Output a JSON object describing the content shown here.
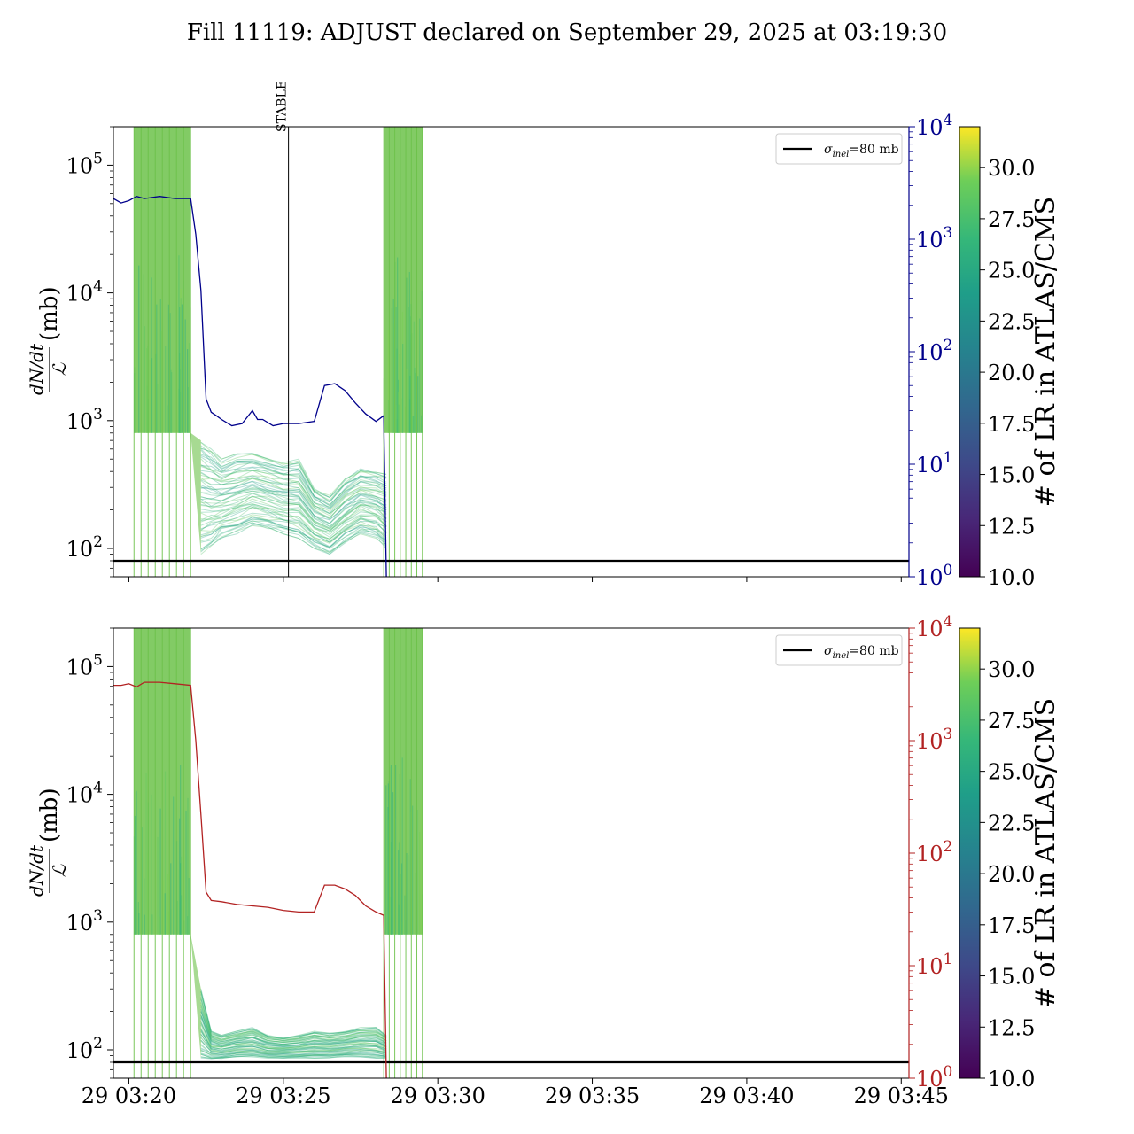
{
  "title": "Fill 11119: ADJUST declared on September 29, 2025 at 03:19:30",
  "colors": {
    "top_series": "#00008b",
    "bottom_series": "#b22222",
    "bundle_green": "#6cc24a",
    "bundle_teal": "#21918c",
    "sigma_line": "#000000"
  },
  "colormap": "viridis",
  "x_axis": {
    "type": "time",
    "range": [
      "03:19:30",
      "03:45:15"
    ],
    "tick_labels": [
      "29 03:20",
      "29 03:25",
      "29 03:30",
      "29 03:35",
      "29 03:40",
      "29 03:45"
    ],
    "tick_times": [
      "03:20",
      "03:25",
      "03:30",
      "03:35",
      "03:40",
      "03:45"
    ]
  },
  "y_left": {
    "scale": "log",
    "range": [
      60,
      200000
    ],
    "label_num": "dN/dt",
    "label_den": "ℒ",
    "label_unit": "(mb)",
    "ticks": [
      {
        "base": "10",
        "exp": "2",
        "v": 100
      },
      {
        "base": "10",
        "exp": "3",
        "v": 1000
      },
      {
        "base": "10",
        "exp": "4",
        "v": 10000
      },
      {
        "base": "10",
        "exp": "5",
        "v": 100000
      }
    ]
  },
  "y_right": {
    "scale": "log",
    "range": [
      1,
      10000
    ],
    "ticks": [
      {
        "base": "10",
        "exp": "0",
        "v": 1
      },
      {
        "base": "10",
        "exp": "1",
        "v": 10
      },
      {
        "base": "10",
        "exp": "2",
        "v": 100
      },
      {
        "base": "10",
        "exp": "3",
        "v": 1000
      },
      {
        "base": "10",
        "exp": "4",
        "v": 10000
      }
    ]
  },
  "colorbar": {
    "label": "# of LR in ATLAS/CMS",
    "range": [
      10.0,
      32.0
    ],
    "ticks": [
      "10.0",
      "12.5",
      "15.0",
      "17.5",
      "20.0",
      "22.5",
      "25.0",
      "27.5",
      "30.0"
    ]
  },
  "legend": {
    "label_main": "σ",
    "label_sub": "inel",
    "label_rest": "=80 mb"
  },
  "stable_marker": {
    "label": "STABLE",
    "time": "03:25:10"
  },
  "chart_data": [
    {
      "panel": "top",
      "type": "line",
      "sigma_inel_mb": 80,
      "bundle_description": "many colored lines (colored by # of LR)",
      "bundle_bursts": [
        [
          "03:20:10",
          "03:22:00"
        ],
        [
          "03:28:15",
          "03:29:30"
        ]
      ],
      "bundle_band": {
        "x": [
          "03:22:20",
          "03:22:40",
          "03:23:00",
          "03:23:30",
          "03:24:00",
          "03:24:30",
          "03:25:00",
          "03:25:30",
          "03:26:00",
          "03:26:30",
          "03:27:00",
          "03:27:30",
          "03:28:00",
          "03:28:20"
        ],
        "low": [
          90,
          100,
          120,
          130,
          150,
          140,
          130,
          120,
          100,
          90,
          110,
          130,
          120,
          100
        ],
        "high": [
          700,
          600,
          500,
          550,
          560,
          520,
          480,
          500,
          300,
          260,
          350,
          420,
          400,
          380
        ]
      },
      "right_series": {
        "x": [
          "03:19:30",
          "03:19:45",
          "03:20:00",
          "03:20:15",
          "03:20:30",
          "03:21:00",
          "03:21:30",
          "03:22:00",
          "03:22:10",
          "03:22:20",
          "03:22:30",
          "03:22:40",
          "03:22:50",
          "03:23:00",
          "03:23:20",
          "03:23:40",
          "03:24:00",
          "03:24:10",
          "03:24:20",
          "03:24:40",
          "03:25:00",
          "03:25:30",
          "03:26:00",
          "03:26:20",
          "03:26:40",
          "03:27:00",
          "03:27:20",
          "03:27:40",
          "03:28:00",
          "03:28:15",
          "03:28:20"
        ],
        "y": [
          2300,
          2100,
          2200,
          2400,
          2300,
          2400,
          2300,
          2300,
          1100,
          350,
          38,
          29,
          27,
          25,
          22,
          23,
          30,
          25,
          25,
          22,
          23,
          23,
          24,
          50,
          52,
          45,
          35,
          28,
          24,
          27,
          1
        ]
      }
    },
    {
      "panel": "bottom",
      "type": "line",
      "sigma_inel_mb": 80,
      "bundle_description": "many colored lines (colored by # of LR)",
      "bundle_bursts": [
        [
          "03:20:10",
          "03:22:00"
        ],
        [
          "03:28:15",
          "03:29:30"
        ]
      ],
      "bundle_band": {
        "x": [
          "03:22:20",
          "03:22:40",
          "03:23:00",
          "03:23:30",
          "03:24:00",
          "03:24:30",
          "03:25:00",
          "03:25:30",
          "03:26:00",
          "03:26:30",
          "03:27:00",
          "03:27:30",
          "03:28:00",
          "03:28:20"
        ],
        "low": [
          85,
          85,
          85,
          88,
          88,
          86,
          86,
          86,
          86,
          86,
          88,
          88,
          86,
          85
        ],
        "high": [
          300,
          140,
          130,
          140,
          150,
          130,
          125,
          130,
          140,
          135,
          140,
          150,
          150,
          130
        ]
      },
      "right_series": {
        "x": [
          "03:19:30",
          "03:19:45",
          "03:20:00",
          "03:20:15",
          "03:20:30",
          "03:21:00",
          "03:21:30",
          "03:22:00",
          "03:22:10",
          "03:22:20",
          "03:22:30",
          "03:22:40",
          "03:23:00",
          "03:23:30",
          "03:24:00",
          "03:24:30",
          "03:25:00",
          "03:25:30",
          "03:26:00",
          "03:26:20",
          "03:26:40",
          "03:27:00",
          "03:27:20",
          "03:27:40",
          "03:28:00",
          "03:28:15",
          "03:28:20"
        ],
        "y": [
          3100,
          3100,
          3200,
          3000,
          3300,
          3300,
          3200,
          3100,
          1000,
          220,
          45,
          38,
          37,
          35,
          34,
          33,
          31,
          30,
          30,
          52,
          52,
          48,
          42,
          34,
          30,
          28,
          1
        ]
      }
    }
  ]
}
